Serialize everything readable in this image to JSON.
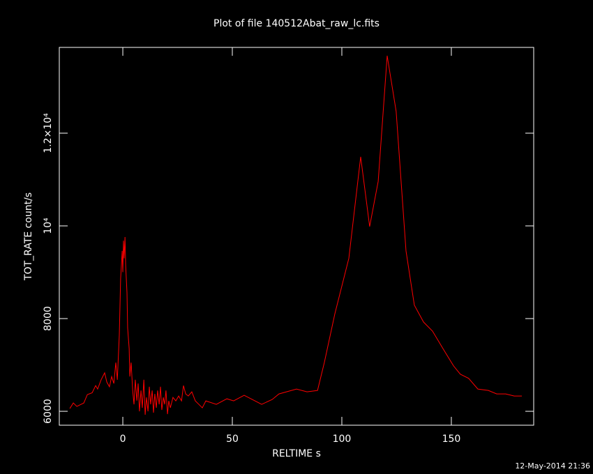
{
  "chart_data": {
    "type": "line",
    "title": "Plot of file 140512Abat_raw_lc.fits",
    "xlabel": "RELTIME  s",
    "ylabel": "TOT_RATE  count/s",
    "footer": "12-May-2014 21:36",
    "xlim": [
      -29,
      187.6
    ],
    "ylim": [
      5700,
      13850
    ],
    "xticks": [
      0,
      50,
      100,
      150
    ],
    "yticks": [
      6000,
      8000,
      {
        "value": 10000,
        "label": "10⁴"
      },
      {
        "value": 12000,
        "label": "1.2×10⁴"
      }
    ],
    "background": "#000000",
    "axis_color": "#ffffff",
    "series": [
      {
        "color": "#ff0000",
        "x": [
          -24.2,
          -22.6,
          -21,
          -17.8,
          -16.2,
          -14,
          -12.4,
          -11.5,
          -9.9,
          -8.3,
          -7.3,
          -6.1,
          -5.1,
          -4.1,
          -3.2,
          -2.5,
          -1.6,
          -1,
          -0.3,
          0,
          0.3,
          0.6,
          1,
          1.3,
          1.9,
          2.2,
          2.9,
          3.2,
          3.8,
          4.5,
          5.1,
          5.7,
          6.4,
          7,
          7.6,
          8.3,
          8.9,
          9.6,
          10.2,
          10.8,
          11.5,
          12.1,
          12.7,
          13.4,
          14,
          14.6,
          15.3,
          15.9,
          16.6,
          17.2,
          17.8,
          18.5,
          19.1,
          19.7,
          20.4,
          21,
          21.7,
          22.9,
          24.2,
          25.5,
          26.8,
          27.7,
          28.7,
          29.9,
          31.5,
          33.1,
          34.7,
          36.3,
          37.9,
          42.7,
          47.5,
          50.6,
          55.4,
          63.4,
          68.2,
          71.3,
          79.3,
          84.1,
          88.9,
          92,
          96.8,
          103.2,
          108.6,
          112.7,
          116.6,
          120.7,
          124.8,
          129.3,
          133.1,
          137.3,
          141.4,
          146.2,
          151,
          154.1,
          157.9,
          162.1,
          166.9,
          170.7,
          174.8,
          178.7,
          182.2
        ],
        "values": [
          6060,
          6180,
          6105,
          6180,
          6360,
          6400,
          6555,
          6480,
          6680,
          6830,
          6630,
          6530,
          6750,
          6600,
          7050,
          6680,
          7650,
          8860,
          9460,
          9000,
          9680,
          9300,
          9760,
          9150,
          8560,
          7800,
          7350,
          6750,
          7050,
          6450,
          6150,
          6680,
          6230,
          6600,
          6000,
          6450,
          6075,
          6680,
          5925,
          6300,
          6000,
          6530,
          6150,
          6450,
          5970,
          6375,
          6075,
          6450,
          6150,
          6530,
          6030,
          6300,
          6150,
          6450,
          5940,
          6225,
          6075,
          6300,
          6225,
          6330,
          6225,
          6555,
          6375,
          6330,
          6420,
          6225,
          6150,
          6075,
          6225,
          6150,
          6270,
          6225,
          6345,
          6150,
          6255,
          6375,
          6480,
          6420,
          6450,
          7050,
          8100,
          9300,
          11490,
          9985,
          10960,
          13670,
          12470,
          9460,
          8290,
          7925,
          7730,
          7350,
          6980,
          6800,
          6710,
          6480,
          6450,
          6375,
          6375,
          6330,
          6330
        ]
      }
    ]
  }
}
